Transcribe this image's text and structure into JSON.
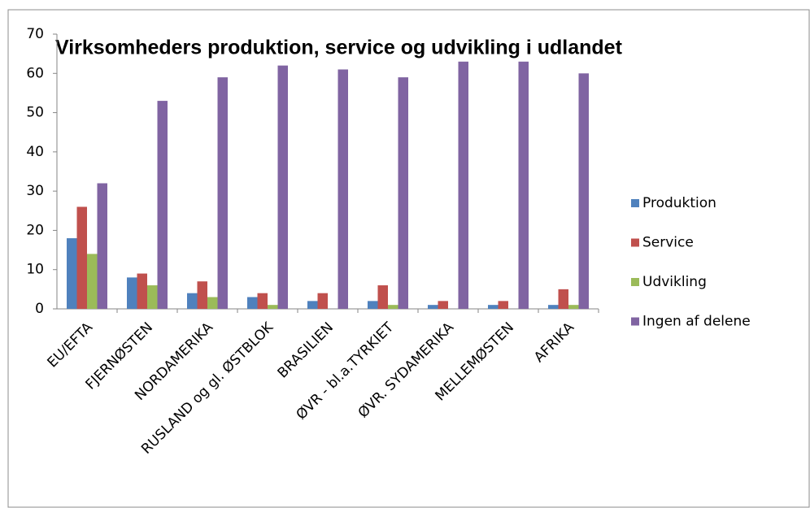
{
  "chart_data": {
    "type": "bar",
    "title": "Virksomheders produktion, service og udvikling i udlandet",
    "categories": [
      "EU/EFTA",
      "FJERNØSTEN",
      "NORDAMERIKA",
      "RUSLAND og gl. ØSTBLOK",
      "BRASILIEN",
      "ØVR - bl.a.TYRKIET",
      "ØVR. SYDAMERIKA",
      "MELLEMØSTEN",
      "AFRIKA"
    ],
    "series": [
      {
        "name": "Produktion",
        "color": "#4f81bd",
        "values": [
          18,
          8,
          4,
          3,
          2,
          2,
          1,
          1,
          1
        ]
      },
      {
        "name": "Service",
        "color": "#c0504d",
        "values": [
          26,
          9,
          7,
          4,
          4,
          6,
          2,
          2,
          5
        ]
      },
      {
        "name": "Udvikling",
        "color": "#9bbb59",
        "values": [
          14,
          6,
          3,
          1,
          0,
          1,
          0,
          0,
          1
        ]
      },
      {
        "name": "Ingen af delene",
        "color": "#8064a2",
        "values": [
          32,
          53,
          59,
          62,
          61,
          59,
          63,
          63,
          60
        ]
      }
    ],
    "ylim": [
      0,
      70
    ],
    "yticks": [
      0,
      10,
      20,
      30,
      40,
      50,
      60,
      70
    ],
    "grid": false,
    "legend": "right"
  }
}
